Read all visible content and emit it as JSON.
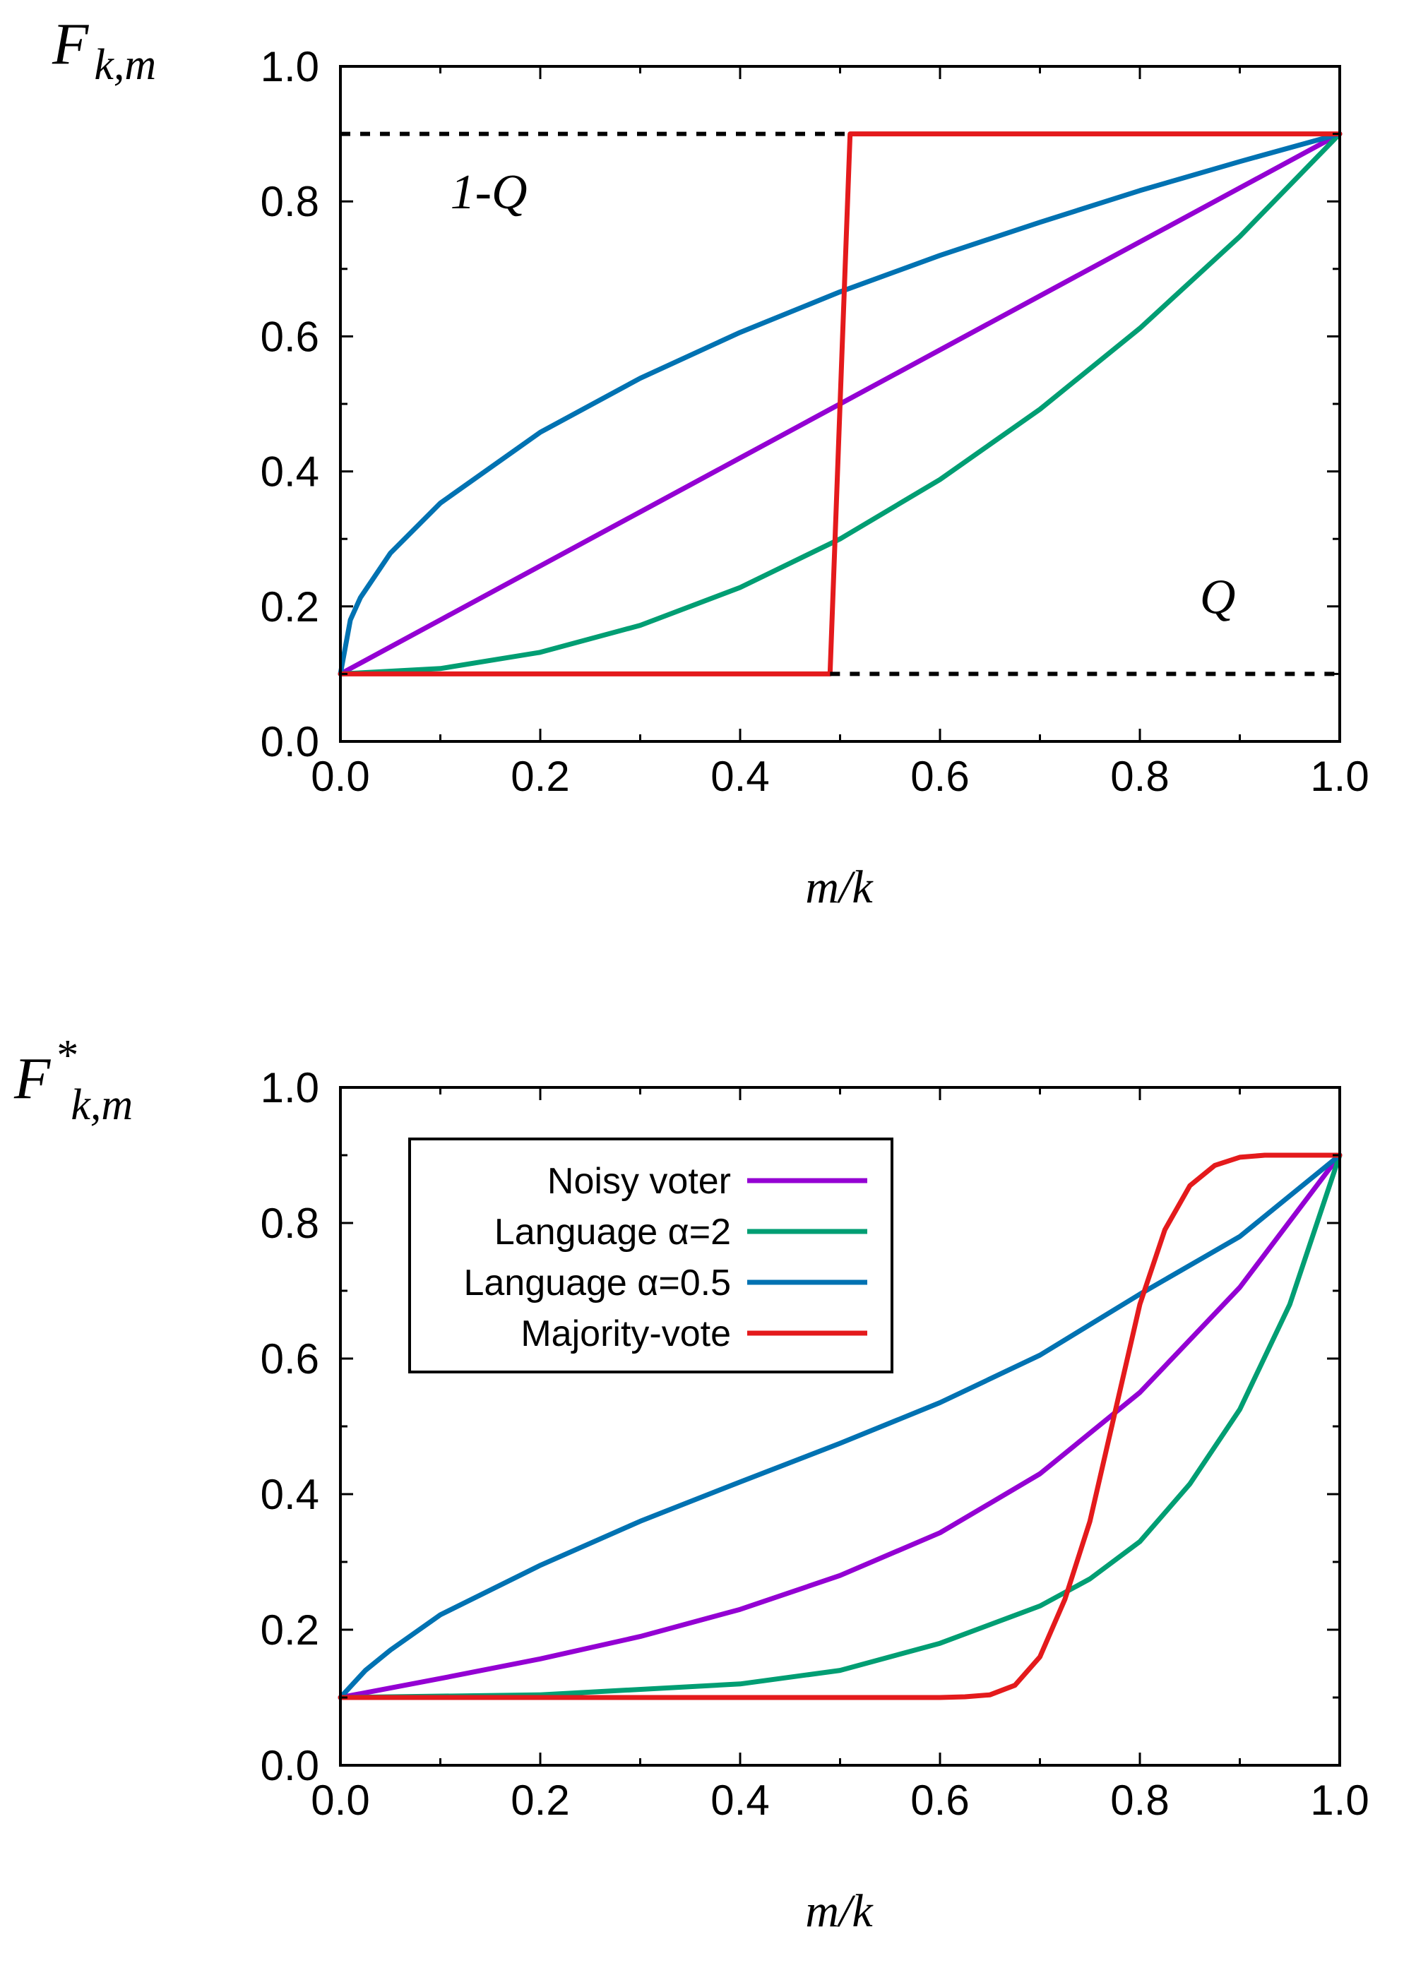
{
  "chart_data": [
    {
      "type": "line",
      "ylabel": "F",
      "ylabel_sub": "k,m",
      "xlabel": "m/k",
      "xlim": [
        0,
        1
      ],
      "ylim": [
        0,
        1
      ],
      "xticks": [
        "0.0",
        "0.2",
        "0.4",
        "0.6",
        "0.8",
        "1.0"
      ],
      "yticks": [
        "0.0",
        "0.2",
        "0.4",
        "0.6",
        "0.8",
        "1.0"
      ],
      "annotations": [
        {
          "text": "1-Q",
          "x": 0.11,
          "y": 0.79
        },
        {
          "text": "Q",
          "x": 0.86,
          "y": 0.19
        }
      ],
      "reference_lines": [
        {
          "y": 0.9,
          "x_from": 0.0,
          "x_to": 0.51,
          "style": "dashed"
        },
        {
          "y": 0.1,
          "x_from": 0.49,
          "x_to": 1.0,
          "style": "dashed"
        }
      ],
      "series": [
        {
          "name": "Noisy voter",
          "color": "#9400d3",
          "x": [
            0,
            0.1,
            0.2,
            0.3,
            0.4,
            0.5,
            0.6,
            0.7,
            0.8,
            0.9,
            1.0
          ],
          "y": [
            0.1,
            0.18,
            0.26,
            0.34,
            0.42,
            0.5,
            0.58,
            0.66,
            0.74,
            0.82,
            0.9
          ]
        },
        {
          "name": "Language α=2",
          "color": "#009e73",
          "x": [
            0,
            0.1,
            0.2,
            0.3,
            0.4,
            0.5,
            0.6,
            0.7,
            0.8,
            0.9,
            1.0
          ],
          "y": [
            0.1,
            0.108,
            0.132,
            0.172,
            0.228,
            0.3,
            0.388,
            0.492,
            0.612,
            0.748,
            0.9
          ]
        },
        {
          "name": "Language α=0.5",
          "color": "#0072b2",
          "x": [
            0,
            0.01,
            0.02,
            0.05,
            0.1,
            0.2,
            0.3,
            0.4,
            0.5,
            0.6,
            0.7,
            0.8,
            0.9,
            1.0
          ],
          "y": [
            0.1,
            0.18,
            0.213,
            0.279,
            0.353,
            0.458,
            0.538,
            0.606,
            0.666,
            0.72,
            0.769,
            0.816,
            0.859,
            0.9
          ]
        },
        {
          "name": "Majority-vote",
          "color": "#e41a1c",
          "x": [
            0,
            0.49,
            0.51,
            1.0
          ],
          "y": [
            0.1,
            0.1,
            0.9,
            0.9
          ]
        }
      ]
    },
    {
      "type": "line",
      "ylabel": "F",
      "ylabel_sup": "*",
      "ylabel_sub": "k,m",
      "xlabel": "m/k",
      "xlim": [
        0,
        1
      ],
      "ylim": [
        0,
        1
      ],
      "xticks": [
        "0.0",
        "0.2",
        "0.4",
        "0.6",
        "0.8",
        "1.0"
      ],
      "yticks": [
        "0.0",
        "0.2",
        "0.4",
        "0.6",
        "0.8",
        "1.0"
      ],
      "legend": {
        "position": "top-left",
        "entries": [
          "Noisy voter",
          "Language α=2",
          "Language α=0.5",
          "Majority-vote"
        ]
      },
      "series": [
        {
          "name": "Noisy voter",
          "color": "#9400d3",
          "x": [
            0,
            0.1,
            0.2,
            0.3,
            0.4,
            0.5,
            0.6,
            0.7,
            0.8,
            0.9,
            1.0
          ],
          "y": [
            0.1,
            0.128,
            0.157,
            0.19,
            0.23,
            0.28,
            0.343,
            0.43,
            0.55,
            0.705,
            0.9
          ]
        },
        {
          "name": "Language α=2",
          "color": "#009e73",
          "x": [
            0,
            0.2,
            0.4,
            0.5,
            0.6,
            0.7,
            0.75,
            0.8,
            0.85,
            0.9,
            0.95,
            1.0
          ],
          "y": [
            0.1,
            0.104,
            0.12,
            0.14,
            0.18,
            0.235,
            0.275,
            0.33,
            0.415,
            0.525,
            0.68,
            0.9
          ]
        },
        {
          "name": "Language α=0.5",
          "color": "#0072b2",
          "x": [
            0,
            0.025,
            0.05,
            0.1,
            0.2,
            0.3,
            0.4,
            0.5,
            0.6,
            0.7,
            0.8,
            0.9,
            1.0
          ],
          "y": [
            0.1,
            0.14,
            0.17,
            0.222,
            0.295,
            0.36,
            0.418,
            0.475,
            0.535,
            0.605,
            0.695,
            0.78,
            0.9
          ]
        },
        {
          "name": "Majority-vote",
          "color": "#e41a1c",
          "x": [
            0,
            0.6,
            0.625,
            0.65,
            0.675,
            0.7,
            0.725,
            0.75,
            0.775,
            0.8,
            0.825,
            0.85,
            0.875,
            0.9,
            0.925,
            1.0
          ],
          "y": [
            0.1,
            0.1,
            0.101,
            0.104,
            0.118,
            0.16,
            0.245,
            0.36,
            0.52,
            0.68,
            0.79,
            0.855,
            0.885,
            0.897,
            0.9,
            0.9
          ]
        }
      ]
    }
  ]
}
